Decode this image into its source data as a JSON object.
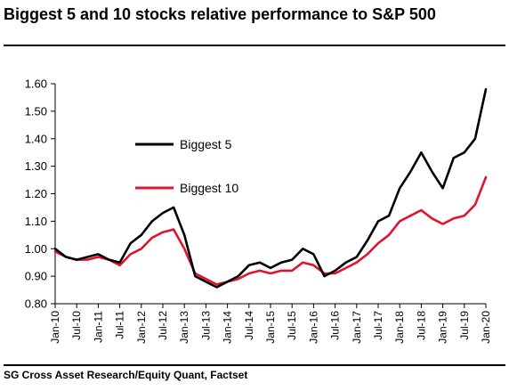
{
  "title": "Biggest 5 and 10 stocks relative performance to S&P 500",
  "source": "SG Cross Asset Research/Equity Quant, Factset",
  "chart_data": {
    "type": "line",
    "title": "Biggest 5 and 10 stocks relative performance to S&P 500",
    "xlabel": "",
    "ylabel": "",
    "ylim": [
      0.8,
      1.6
    ],
    "yticks": [
      "0.80",
      "0.90",
      "1.00",
      "1.10",
      "1.20",
      "1.30",
      "1.40",
      "1.50",
      "1.60"
    ],
    "xticks": [
      "Jan-10",
      "Jul-10",
      "Jan-11",
      "Jul-11",
      "Jan-12",
      "Jul-12",
      "Jan-13",
      "Jul-13",
      "Jan-14",
      "Jul-14",
      "Jan-15",
      "Jul-15",
      "Jan-16",
      "Jul-16",
      "Jan-17",
      "Jul-17",
      "Jan-18",
      "Jul-18",
      "Jan-19",
      "Jul-19",
      "Jan-20"
    ],
    "grid": false,
    "legend": "inside-upper-left",
    "x": [
      "2010-01",
      "2010-04",
      "2010-07",
      "2010-10",
      "2011-01",
      "2011-04",
      "2011-07",
      "2011-10",
      "2012-01",
      "2012-04",
      "2012-07",
      "2012-10",
      "2013-01",
      "2013-04",
      "2013-07",
      "2013-10",
      "2014-01",
      "2014-04",
      "2014-07",
      "2014-10",
      "2015-01",
      "2015-04",
      "2015-07",
      "2015-10",
      "2016-01",
      "2016-04",
      "2016-07",
      "2016-10",
      "2017-01",
      "2017-04",
      "2017-07",
      "2017-10",
      "2018-01",
      "2018-04",
      "2018-07",
      "2018-10",
      "2019-01",
      "2019-04",
      "2019-07",
      "2019-10",
      "2020-01"
    ],
    "series": [
      {
        "name": "Biggest 5",
        "color": "#000000",
        "values": [
          1.0,
          0.97,
          0.96,
          0.97,
          0.98,
          0.96,
          0.95,
          1.02,
          1.05,
          1.1,
          1.13,
          1.15,
          1.05,
          0.9,
          0.88,
          0.86,
          0.88,
          0.9,
          0.94,
          0.95,
          0.93,
          0.95,
          0.96,
          1.0,
          0.98,
          0.9,
          0.92,
          0.95,
          0.97,
          1.03,
          1.1,
          1.12,
          1.22,
          1.28,
          1.35,
          1.28,
          1.22,
          1.33,
          1.35,
          1.4,
          1.58
        ]
      },
      {
        "name": "Biggest 10",
        "color": "#e0142d",
        "values": [
          0.99,
          0.97,
          0.96,
          0.96,
          0.97,
          0.96,
          0.94,
          0.98,
          1.0,
          1.04,
          1.06,
          1.07,
          1.0,
          0.91,
          0.89,
          0.87,
          0.88,
          0.89,
          0.91,
          0.92,
          0.91,
          0.92,
          0.92,
          0.95,
          0.94,
          0.91,
          0.91,
          0.93,
          0.95,
          0.98,
          1.02,
          1.05,
          1.1,
          1.12,
          1.14,
          1.11,
          1.09,
          1.11,
          1.12,
          1.16,
          1.26
        ]
      }
    ]
  }
}
